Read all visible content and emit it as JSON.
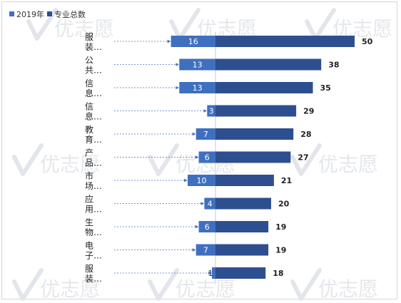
{
  "chart_data": {
    "type": "bar",
    "orientation": "horizontal",
    "legend_position": "top-left",
    "grid": false,
    "categories": [
      "服装…",
      "公共…",
      "信息…",
      "信息…",
      "教育…",
      "产品…",
      "市场…",
      "应用…",
      "生物…",
      "电子…",
      "服装…"
    ],
    "series": [
      {
        "name": "2019年",
        "color": "#3f6fbf",
        "direction": "left",
        "values": [
          16,
          13,
          13,
          3,
          7,
          6,
          10,
          4,
          6,
          7,
          1
        ]
      },
      {
        "name": "专业总数",
        "color": "#2e4f8f",
        "direction": "right",
        "values": [
          50,
          38,
          35,
          29,
          28,
          27,
          21,
          20,
          19,
          19,
          18
        ]
      }
    ],
    "xlabel": "",
    "ylabel": ""
  },
  "watermark": "优志愿"
}
